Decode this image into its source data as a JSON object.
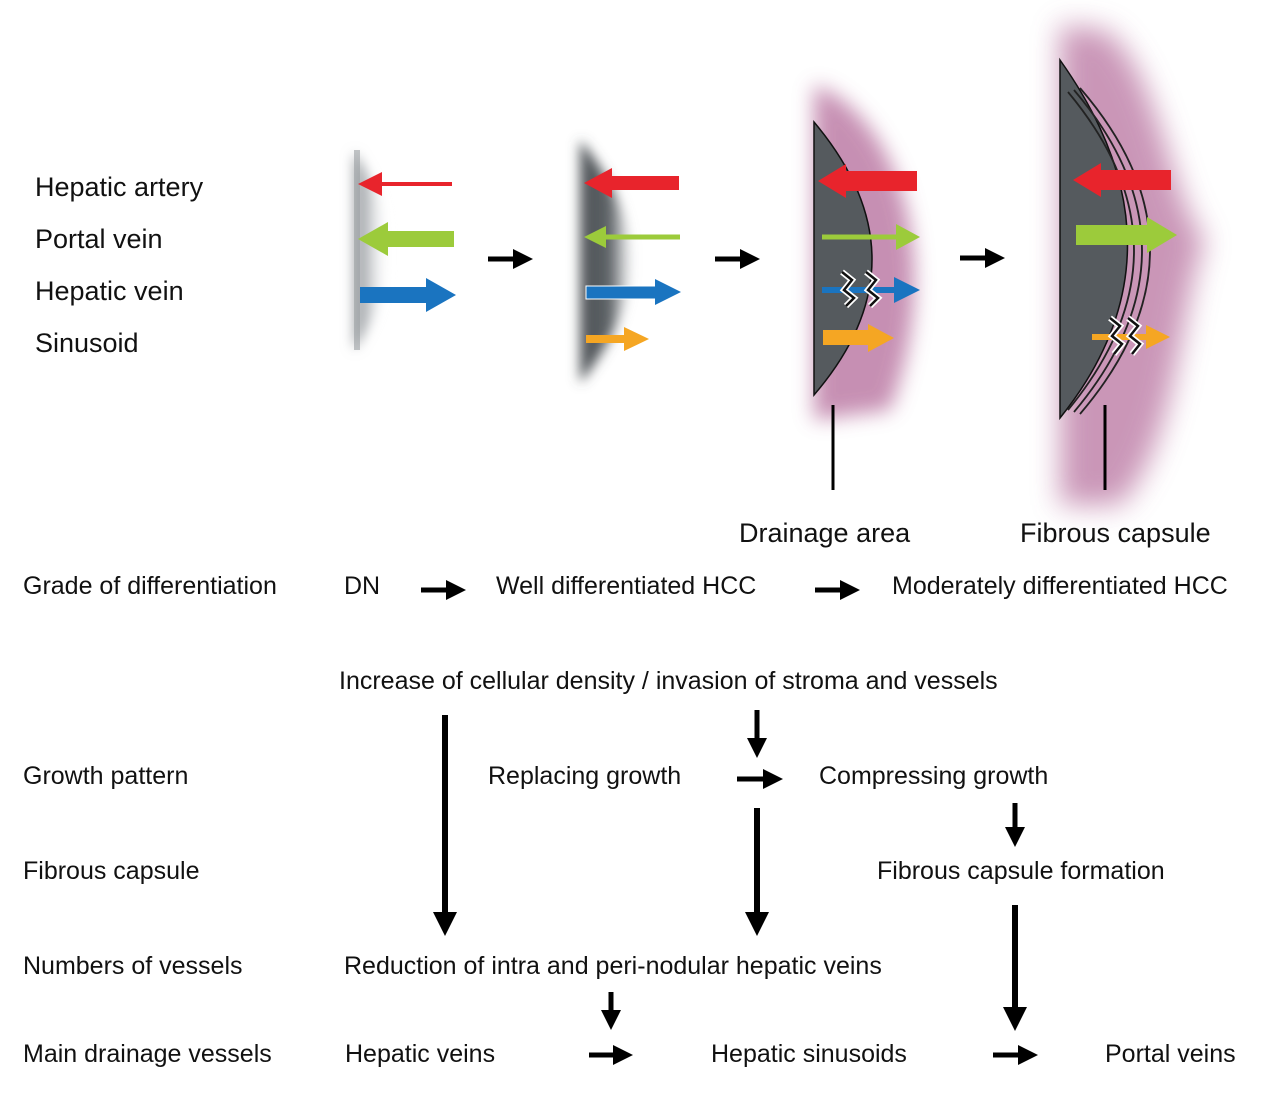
{
  "legend": {
    "hepatic_artery": "Hepatic artery",
    "portal_vein": "Portal vein",
    "hepatic_vein": "Hepatic vein",
    "sinusoid": "Sinusoid"
  },
  "stage_labels": {
    "drainage_area": "Drainage area",
    "fibrous_capsule": "Fibrous capsule"
  },
  "differentiation": {
    "row_label": "Grade of differentiation",
    "stages": [
      "DN",
      "Well differentiated HCC",
      "Moderately differentiated HCC"
    ]
  },
  "flow": {
    "header": "Increase of cellular density / invasion of stroma and vessels",
    "growth_pattern": {
      "row_label": "Growth pattern",
      "replacing": "Replacing growth",
      "compressing": "Compressing growth"
    },
    "fibrous_capsule": {
      "row_label": "Fibrous capsule",
      "formation": "Fibrous capsule formation"
    },
    "numbers_of_vessels": {
      "row_label": "Numbers of vessels",
      "reduction": "Reduction of intra and peri-nodular hepatic veins"
    },
    "main_drainage": {
      "row_label": "Main drainage vessels",
      "hepatic_veins": "Hepatic veins",
      "hepatic_sinusoids": "Hepatic sinusoids",
      "portal_veins": "Portal veins"
    }
  },
  "colors": {
    "hepatic_artery": "#e8242c",
    "portal_vein": "#9ccb3b",
    "hepatic_vein": "#1a74c0",
    "sinusoid": "#f5a623",
    "tumor": "#555a5e",
    "capsule_glow": "#b46a9a"
  }
}
